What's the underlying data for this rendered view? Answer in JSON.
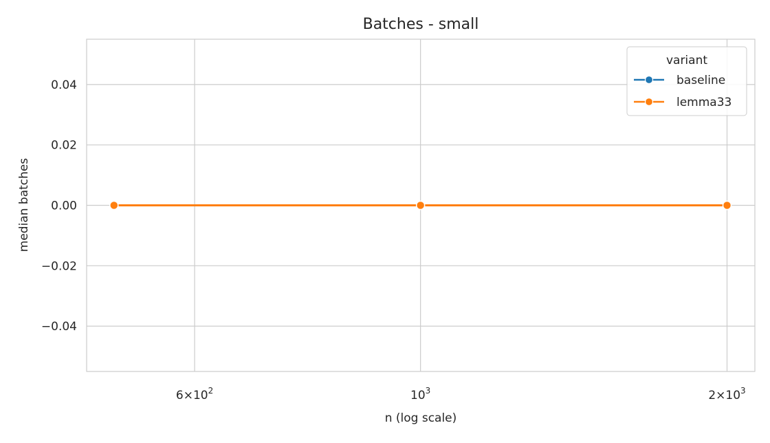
{
  "chart_data": {
    "type": "line",
    "title": "Batches - small",
    "xlabel": "n (log scale)",
    "ylabel": "median batches",
    "x_scale": "log",
    "xlim": [
      470,
      2130
    ],
    "ylim": [
      -0.055,
      0.055
    ],
    "x_ticks": [
      {
        "value": 600,
        "mantissa": "6",
        "base": "10",
        "exp": "2"
      },
      {
        "value": 1000,
        "mantissa": "",
        "base": "10",
        "exp": "3"
      },
      {
        "value": 2000,
        "mantissa": "2",
        "base": "10",
        "exp": "3"
      }
    ],
    "y_ticks": [
      {
        "value": 0.04,
        "label": "0.04"
      },
      {
        "value": 0.02,
        "label": "0.02"
      },
      {
        "value": 0.0,
        "label": "0.00"
      },
      {
        "value": -0.02,
        "label": "−0.02"
      },
      {
        "value": -0.04,
        "label": "−0.04"
      }
    ],
    "grid": true,
    "legend": {
      "title": "variant",
      "placement": "top-right"
    },
    "series": [
      {
        "name": "baseline",
        "color": "#1f77b4",
        "marker": "circle",
        "x": [
          500,
          1000,
          2000
        ],
        "y": [
          0,
          0,
          0
        ]
      },
      {
        "name": "lemma33",
        "color": "#ff7f0e",
        "marker": "circle",
        "x": [
          500,
          1000,
          2000
        ],
        "y": [
          0,
          0,
          0
        ]
      }
    ]
  }
}
